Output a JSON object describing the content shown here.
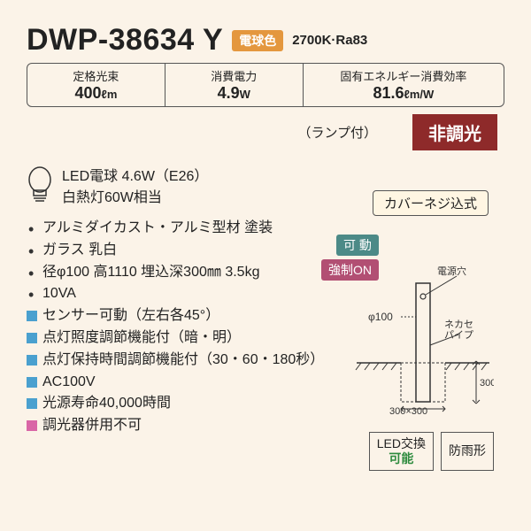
{
  "model": "DWP-38634 Y",
  "color_badge": "電球色",
  "color_spec": "2700K·Ra83",
  "specs": {
    "flux_label": "定格光束",
    "flux_value": "400",
    "flux_unit": "ℓm",
    "power_label": "消費電力",
    "power_value": "4.9",
    "power_unit": "W",
    "eff_label": "固有エネルギー消費効率",
    "eff_value": "81.6",
    "eff_unit": "ℓm/W"
  },
  "lamp_note": "（ランプ付）",
  "non_dimming": "非調光",
  "bulb": {
    "line1": "LED電球 4.6W（E26）",
    "line2": "白熱灯60W相当"
  },
  "cover": "カバーネジ込式",
  "badge_move": "可 動",
  "badge_force": "強制ON",
  "details": [
    {
      "type": "dot",
      "text": "アルミダイカスト・アルミ型材 塗装"
    },
    {
      "type": "dot",
      "text": "ガラス 乳白"
    },
    {
      "type": "dot",
      "text": "径φ100 高1110 埋込深300㎜ 3.5kg"
    },
    {
      "type": "dot",
      "text": "10VA"
    },
    {
      "type": "sq",
      "text": "センサー可動（左右各45°）"
    },
    {
      "type": "sq",
      "text": "点灯照度調節機能付（暗・明）"
    },
    {
      "type": "sq",
      "text": "点灯保持時間調節機能付（30・60・180秒）"
    },
    {
      "type": "sq",
      "text": "AC100V"
    },
    {
      "type": "sq",
      "text": "光源寿命40,000時間"
    },
    {
      "type": "sq-pink",
      "text": "調光器併用不可"
    }
  ],
  "diagram": {
    "power_hole": "電源穴",
    "phi": "φ100",
    "pipe": "ネカセ\nパイプ",
    "dim_w": "300",
    "dim_h": "300",
    "base_w": "300"
  },
  "led_swap_l1": "LED交換",
  "led_swap_l2": "可能",
  "rainproof": "防雨形",
  "colors": {
    "bg": "#fbf3e8",
    "orange": "#e4973e",
    "darkred": "#8e2a2a",
    "teal": "#4c8a87",
    "rose": "#b24f73",
    "blue_sq": "#4aa0cf",
    "pink_sq": "#d966a6",
    "green": "#2e8b3e"
  }
}
